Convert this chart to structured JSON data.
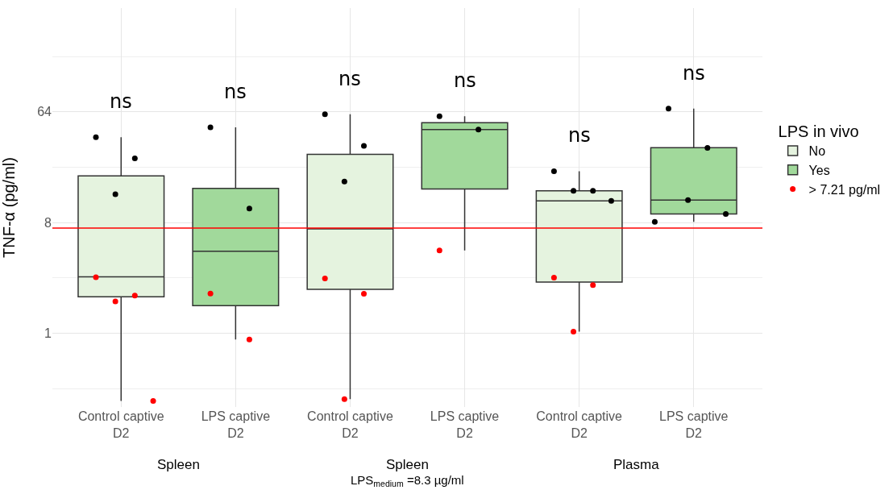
{
  "chart_data": {
    "type": "box",
    "ylabel": "TNF-α (pg/ml)",
    "legend_title": "LPS in vivo",
    "categories": [
      "Control captive D2",
      "LPS captive D2",
      "Control captive D2",
      "LPS captive D2",
      "Control captive D2",
      "LPS captive D2"
    ],
    "series": [
      {
        "name": "No",
        "color": "#e5f3df",
        "boxes": [
          {
            "low": 0.28,
            "q1": 1.98,
            "median": 2.88,
            "q3": 19.2,
            "high": 39.7
          },
          null,
          {
            "low": 0.29,
            "q1": 2.28,
            "median": 7.1,
            "q3": 28.8,
            "high": 61.2
          },
          null,
          {
            "low": 1.03,
            "q1": 2.61,
            "median": 12.0,
            "q3": 14.5,
            "high": 21.0
          },
          null
        ]
      },
      {
        "name": "Yes",
        "color": "#a1d99b",
        "boxes": [
          null,
          {
            "low": 0.89,
            "q1": 1.68,
            "median": 4.67,
            "q3": 15.2,
            "high": 47.9
          },
          null,
          {
            "low": 4.73,
            "q1": 15.0,
            "median": 45.9,
            "q3": 52.3,
            "high": 58.9
          },
          null,
          {
            "low": 8.1,
            "q1": 9.4,
            "median": 12.2,
            "q3": 32.6,
            "high": 68
          }
        ]
      },
      {
        "type": "scatter",
        "color": "#000000",
        "values": [
          39.7,
          47.9,
          61.2,
          58.9,
          21.0,
          68
        ]
      },
      {
        "type": "scatter",
        "color": "#000000",
        "values": [
          26.7,
          10.4,
          33.8,
          45.9,
          14.5,
          32.5
        ]
      },
      {
        "type": "scatter",
        "color": "#000000",
        "values": [
          13.6,
          null,
          17.3,
          null,
          14.5,
          12.2
        ]
      },
      {
        "type": "scatter",
        "color": "#000000",
        "values": [
          null,
          null,
          null,
          null,
          12.0,
          9.4
        ]
      },
      {
        "type": "scatter",
        "color": "#000000",
        "values": [
          null,
          null,
          null,
          null,
          null,
          8.1
        ]
      },
      {
        "type": "scatter",
        "name": "> 7.21 pg/ml",
        "color": "#ff0000",
        "values": [
          2.86,
          2.11,
          2.8,
          4.73,
          2.84,
          null
        ]
      },
      {
        "type": "scatter",
        "color": "#ff0000",
        "values": [
          2.03,
          0.89,
          2.1,
          null,
          2.47,
          null
        ]
      },
      {
        "type": "scatter",
        "color": "#ff0000",
        "values": [
          1.82,
          null,
          0.29,
          null,
          1.03,
          null
        ]
      },
      {
        "type": "scatter",
        "color": "#ff0000",
        "values": [
          0.28,
          null,
          null,
          null,
          null,
          null
        ]
      }
    ],
    "log": "y",
    "ylim": [
      0.25,
      450
    ],
    "yticks": [
      1,
      8,
      64
    ],
    "grid": true,
    "legend": "right",
    "marker": "circle",
    "ref_lines": [
      {
        "axis": "y",
        "value": 7.21,
        "color": "#ff0000"
      }
    ],
    "annotations": [
      "ns",
      "ns",
      "ns",
      "ns",
      "ns",
      "ns",
      "Spleen",
      "Spleen",
      "Plasma",
      "LPS$_{medium}$ =8.3 µg/ml"
    ]
  }
}
